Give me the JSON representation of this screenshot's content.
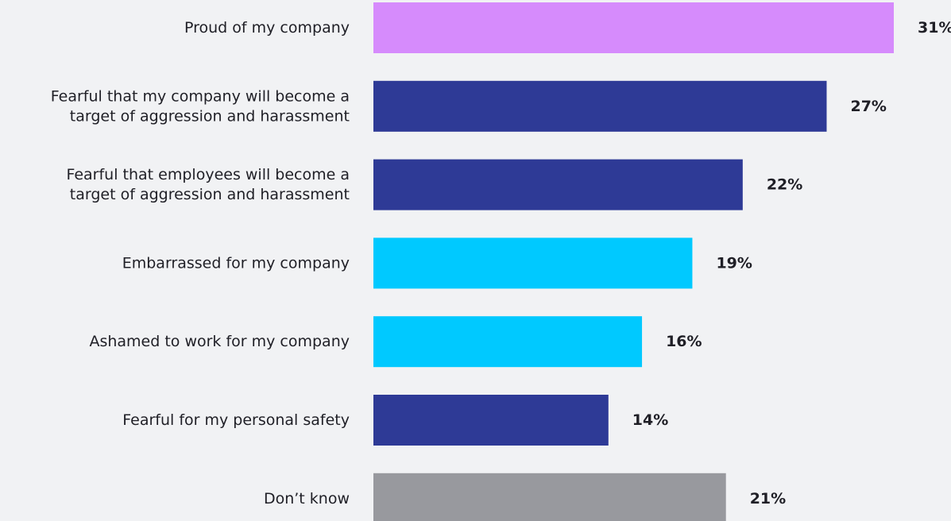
{
  "chart_data": {
    "type": "bar",
    "orientation": "horizontal",
    "title": "",
    "xlabel": "",
    "ylabel": "",
    "categories": [
      [
        "Proud of my company"
      ],
      [
        "Fearful that my company will become a",
        "target of aggression and harassment"
      ],
      [
        "Fearful that employees will become a",
        "target of aggression and harassment"
      ],
      [
        "Embarrassed for my company"
      ],
      [
        "Ashamed to work for my company"
      ],
      [
        "Fearful for my personal safety"
      ],
      [
        "Don’t know"
      ]
    ],
    "values": [
      31,
      27,
      22,
      19,
      16,
      14,
      21
    ],
    "value_labels": [
      "31%",
      "27%",
      "22%",
      "19%",
      "16%",
      "14%",
      "21%"
    ],
    "bar_colors": [
      "#d68bfc",
      "#2e3a96",
      "#2e3a96",
      "#00c9ff",
      "#00c9ff",
      "#2e3a96",
      "#98999e"
    ],
    "xlim": [
      0,
      31
    ],
    "grid": false,
    "legend": "none"
  }
}
